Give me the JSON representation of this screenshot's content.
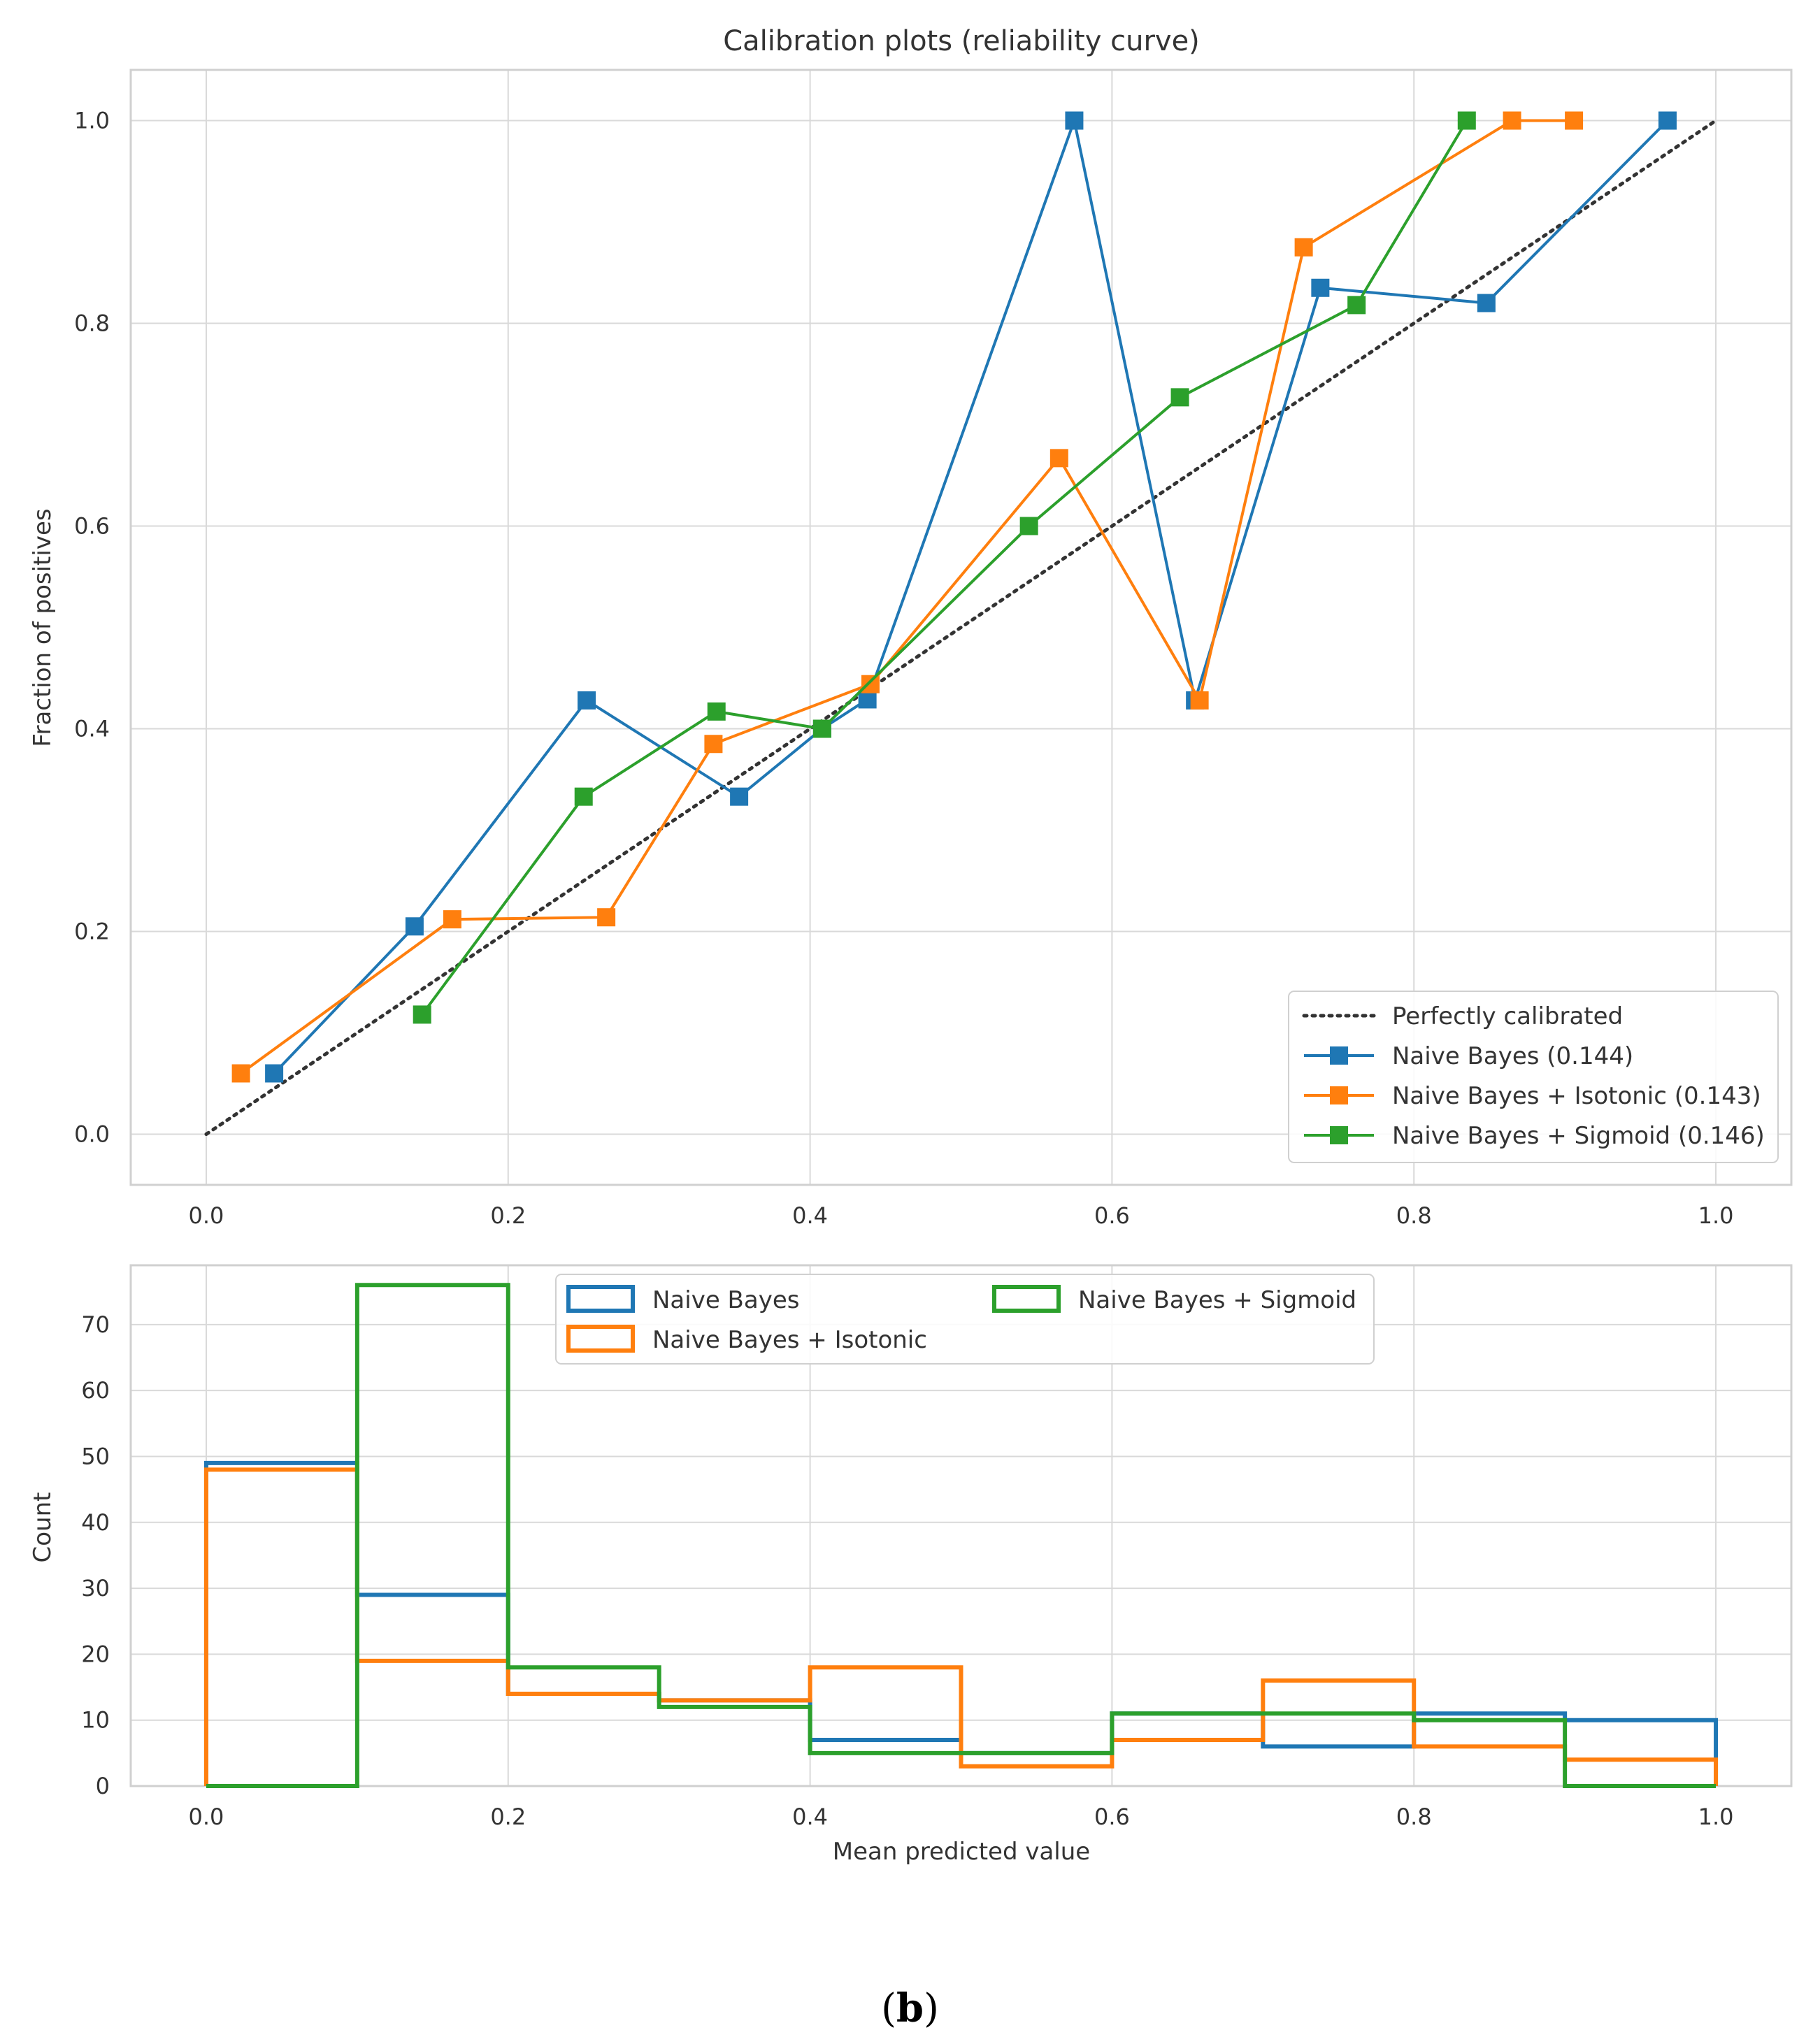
{
  "caption": {
    "open": "(",
    "letter": "b",
    "close": ")"
  },
  "colors": {
    "blue": "#1f77b4",
    "orange": "#ff7f0e",
    "green": "#2ca02c",
    "diag": "#333333",
    "grid": "#d9d9d9",
    "frame": "#d0d0d0"
  },
  "chart_data": [
    {
      "type": "line",
      "title": "Calibration plots  (reliability curve)",
      "xlabel": "",
      "ylabel": "Fraction of positives",
      "xlim": [
        -0.05,
        1.05
      ],
      "ylim": [
        -0.05,
        1.05
      ],
      "xticks": [
        0.0,
        0.2,
        0.4,
        0.6,
        0.8,
        1.0
      ],
      "yticks": [
        0.0,
        0.2,
        0.4,
        0.6,
        0.8,
        1.0
      ],
      "xtick_labels": [
        "0.0",
        "0.2",
        "0.4",
        "0.6",
        "0.8",
        "1.0"
      ],
      "ytick_labels": [
        "0.0",
        "0.2",
        "0.4",
        "0.6",
        "0.8",
        "1.0"
      ],
      "grid": true,
      "legend_position": "bottom-right",
      "series": [
        {
          "name": "Perfectly calibrated",
          "style": "dotted",
          "color": "#333333",
          "marker": "none",
          "x": [
            0.0,
            1.0
          ],
          "y": [
            0.0,
            1.0
          ]
        },
        {
          "name": "Naive Bayes (0.144)",
          "style": "solid",
          "color": "#1f77b4",
          "marker": "square",
          "x": [
            0.045,
            0.138,
            0.252,
            0.353,
            0.408,
            0.438,
            0.575,
            0.655,
            0.738,
            0.848,
            0.968
          ],
          "y": [
            0.06,
            0.205,
            0.428,
            0.333,
            0.4,
            0.429,
            1.0,
            0.428,
            0.835,
            0.82,
            1.0
          ]
        },
        {
          "name": "Naive Bayes + Isotonic (0.143)",
          "style": "solid",
          "color": "#ff7f0e",
          "marker": "square",
          "x": [
            0.023,
            0.163,
            0.265,
            0.336,
            0.44,
            0.565,
            0.658,
            0.727,
            0.865,
            0.906
          ],
          "y": [
            0.06,
            0.212,
            0.214,
            0.385,
            0.444,
            0.667,
            0.428,
            0.875,
            1.0,
            1.0
          ]
        },
        {
          "name": "Naive Bayes + Sigmoid (0.146)",
          "style": "solid",
          "color": "#2ca02c",
          "marker": "square",
          "x": [
            0.143,
            0.25,
            0.338,
            0.408,
            0.545,
            0.645,
            0.762,
            0.835
          ],
          "y": [
            0.118,
            0.333,
            0.417,
            0.4,
            0.6,
            0.727,
            0.818,
            1.0
          ]
        }
      ]
    },
    {
      "type": "histogram",
      "title": "",
      "xlabel": "Mean predicted value",
      "ylabel": "Count",
      "xlim": [
        -0.05,
        1.05
      ],
      "ylim": [
        0,
        79
      ],
      "xticks": [
        0.0,
        0.2,
        0.4,
        0.6,
        0.8,
        1.0
      ],
      "yticks": [
        0,
        10,
        20,
        30,
        40,
        50,
        60,
        70
      ],
      "xtick_labels": [
        "0.0",
        "0.2",
        "0.4",
        "0.6",
        "0.8",
        "1.0"
      ],
      "ytick_labels": [
        "0",
        "10",
        "20",
        "30",
        "40",
        "50",
        "60",
        "70"
      ],
      "grid": true,
      "legend_position": "top-center",
      "bin_edges": [
        0.0,
        0.1,
        0.2,
        0.3,
        0.4,
        0.5,
        0.6,
        0.7,
        0.8,
        0.9,
        1.0
      ],
      "histtype": "step",
      "series": [
        {
          "name": "Naive Bayes",
          "color": "#1f77b4",
          "values": [
            49,
            29,
            14,
            13,
            7,
            5,
            11,
            6,
            11,
            10
          ]
        },
        {
          "name": "Naive Bayes + Isotonic",
          "color": "#ff7f0e",
          "values": [
            48,
            19,
            14,
            13,
            18,
            3,
            7,
            16,
            6,
            4
          ]
        },
        {
          "name": "Naive Bayes + Sigmoid",
          "color": "#2ca02c",
          "values": [
            0,
            76,
            18,
            12,
            5,
            5,
            11,
            11,
            10,
            0
          ]
        }
      ]
    }
  ]
}
